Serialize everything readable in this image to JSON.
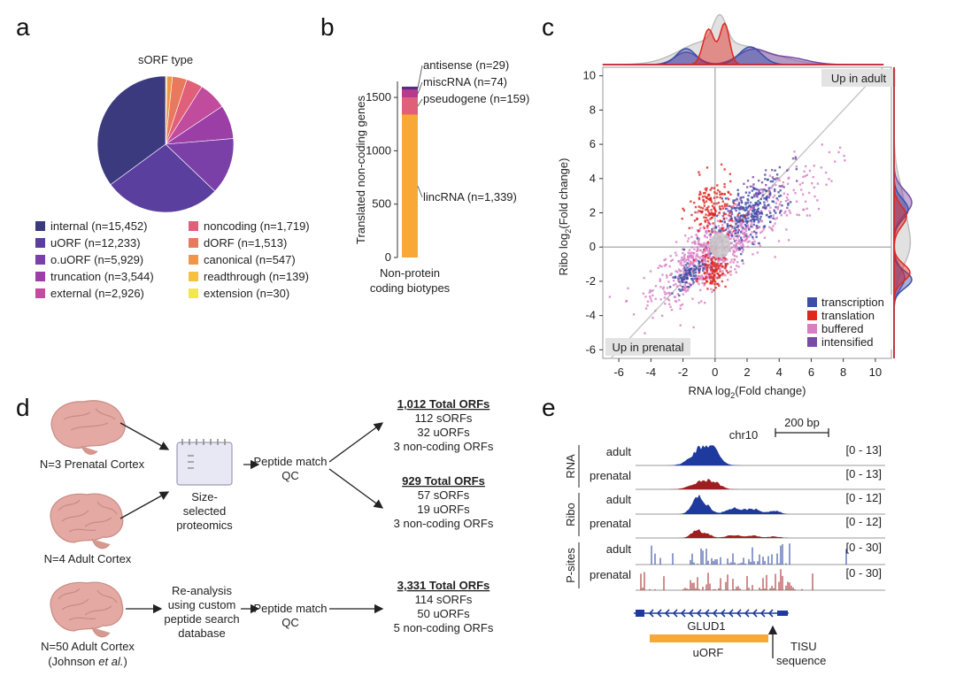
{
  "panel_labels": {
    "a": "a",
    "b": "b",
    "c": "c",
    "d": "d",
    "e": "e"
  },
  "chart_data": [
    {
      "type": "pie",
      "title": "sORF type",
      "slices": [
        {
          "label": "internal (n=15,452)",
          "value": 15452,
          "color": "#3b3a7e"
        },
        {
          "label": "uORF (n=12,233)",
          "value": 12233,
          "color": "#5a3f9e"
        },
        {
          "label": "o.uORF (n=5,929)",
          "value": 5929,
          "color": "#7b3fa8"
        },
        {
          "label": "truncation (n=3,544)",
          "value": 3544,
          "color": "#9b3ea6"
        },
        {
          "label": "external (n=2,926)",
          "value": 2926,
          "color": "#c14b9c"
        },
        {
          "label": "noncoding (n=1,719)",
          "value": 1719,
          "color": "#e0607a"
        },
        {
          "label": "dORF (n=1,513)",
          "value": 1513,
          "color": "#e8795d"
        },
        {
          "label": "canonical (n=547)",
          "value": 547,
          "color": "#f0964a"
        },
        {
          "label": "readthrough (n=139)",
          "value": 139,
          "color": "#f5c23e"
        },
        {
          "label": "extension (n=30)",
          "value": 30,
          "color": "#f2e84b"
        }
      ],
      "legend_order": [
        "internal (n=15,452)",
        "uORF (n=12,233)",
        "o.uORF (n=5,929)",
        "truncation (n=3,544)",
        "external (n=2,926)",
        "noncoding (n=1,719)",
        "dORF (n=1,513)",
        "canonical (n=547)",
        "readthrough (n=139)",
        "extension (n=30)"
      ]
    },
    {
      "type": "bar",
      "stacked": true,
      "ylabel": "Translated non-coding genes",
      "xlabel": "Non-protein coding biotypes",
      "yticks": [
        0,
        500,
        1000,
        1500
      ],
      "ylim": [
        0,
        1650
      ],
      "segments": [
        {
          "label": "lincRNA (n=1,339)",
          "value": 1339,
          "color": "#f7a836"
        },
        {
          "label": "pseudogene (n=159)",
          "value": 159,
          "color": "#e0607a"
        },
        {
          "label": "miscRNA (n=74)",
          "value": 74,
          "color": "#b83a8c"
        },
        {
          "label": "antisense (n=29)",
          "value": 29,
          "color": "#5b2a86"
        }
      ]
    },
    {
      "type": "scatter",
      "xlabel": "RNA log2(Fold change)",
      "ylabel": "Ribo log2(Fold change)",
      "xlim": [
        -7,
        11
      ],
      "ylim": [
        -6.5,
        10.5
      ],
      "xticks": [
        -6,
        -4,
        -2,
        0,
        2,
        4,
        6,
        8,
        10
      ],
      "yticks": [
        -6,
        -4,
        -2,
        0,
        2,
        4,
        6,
        8,
        10
      ],
      "quadrant_labels": {
        "top_right": "Up in adult",
        "bottom_left": "Up in prenatal"
      },
      "series": [
        {
          "name": "transcription",
          "color": "#3a4ea8"
        },
        {
          "name": "translation",
          "color": "#e0261f"
        },
        {
          "name": "buffered",
          "color": "#d77fc4"
        },
        {
          "name": "intensified",
          "color": "#7b4aa6"
        }
      ],
      "clusters": [
        {
          "series": "buffered",
          "cx": -0.3,
          "cy": -0.5,
          "sx": 1.8,
          "sy": 0.9,
          "n": 700
        },
        {
          "series": "buffered",
          "cx": 3.8,
          "cy": 2.6,
          "sx": 1.8,
          "sy": 1.0,
          "n": 120
        },
        {
          "series": "transcription",
          "cx": 2.2,
          "cy": 2.0,
          "sx": 1.1,
          "sy": 0.8,
          "n": 260
        },
        {
          "series": "transcription",
          "cx": -1.6,
          "cy": -1.6,
          "sx": 0.5,
          "sy": 0.3,
          "n": 90
        },
        {
          "series": "translation",
          "cx": -0.2,
          "cy": 2.2,
          "sx": 0.7,
          "sy": 0.9,
          "n": 160
        },
        {
          "series": "translation",
          "cx": -0.1,
          "cy": -1.4,
          "sx": 0.4,
          "sy": 0.5,
          "n": 110
        },
        {
          "series": "intensified",
          "cx": 2.5,
          "cy": 2.9,
          "sx": 1.2,
          "sy": 0.8,
          "n": 60
        }
      ],
      "marginal_density_colors": [
        "#e0261f",
        "#3a4ea8",
        "#7b4aa6",
        "#bdbdbd"
      ]
    }
  ],
  "workflow": {
    "sample1": "N=3 Prenatal Cortex",
    "sample2": "N=4 Adult Cortex",
    "sample3_line1": "N=50 Adult Cortex",
    "sample3_line2_a": "(Johnson ",
    "sample3_line2_em": "et al.",
    "sample3_line2_b": ")",
    "proteomics": [
      "Size-",
      "selected",
      "proteomics"
    ],
    "peptide_qc": [
      "Peptide match",
      "QC"
    ],
    "reanalysis": [
      "Re-analysis",
      "using custom",
      "peptide search",
      "database"
    ],
    "results1": {
      "title": "1,012 Total ORFs",
      "lines": [
        "112 sORFs",
        "32 uORFs",
        "3 non-coding ORFs"
      ]
    },
    "results2": {
      "title": "929 Total ORFs",
      "lines": [
        "57 sORFs",
        "19 uORFs",
        "3 non-coding ORFs"
      ]
    },
    "results3": {
      "title": "3,331 Total ORFs",
      "lines": [
        "114 sORFs",
        "50 uORFs",
        "5 non-coding ORFs"
      ]
    }
  },
  "tracks": {
    "chrom": "chr10",
    "scale": "200 bp",
    "groups": [
      "RNA",
      "Ribo",
      "P-sites"
    ],
    "rows": [
      {
        "label": "adult",
        "range": "[0 - 13]",
        "color": "#1f3a9e"
      },
      {
        "label": "prenatal",
        "range": "[0 - 13]",
        "color": "#9e1f1f"
      },
      {
        "label": "adult",
        "range": "[0 - 12]",
        "color": "#1f3a9e"
      },
      {
        "label": "prenatal",
        "range": "[0 - 12]",
        "color": "#9e1f1f"
      },
      {
        "label": "adult",
        "range": "[0 - 30]",
        "color": "#1f3a9e"
      },
      {
        "label": "prenatal",
        "range": "[0 - 30]",
        "color": "#9e1f1f"
      }
    ],
    "gene": "GLUD1",
    "uorf": "uORF",
    "tisu": [
      "TISU",
      "sequence"
    ]
  }
}
